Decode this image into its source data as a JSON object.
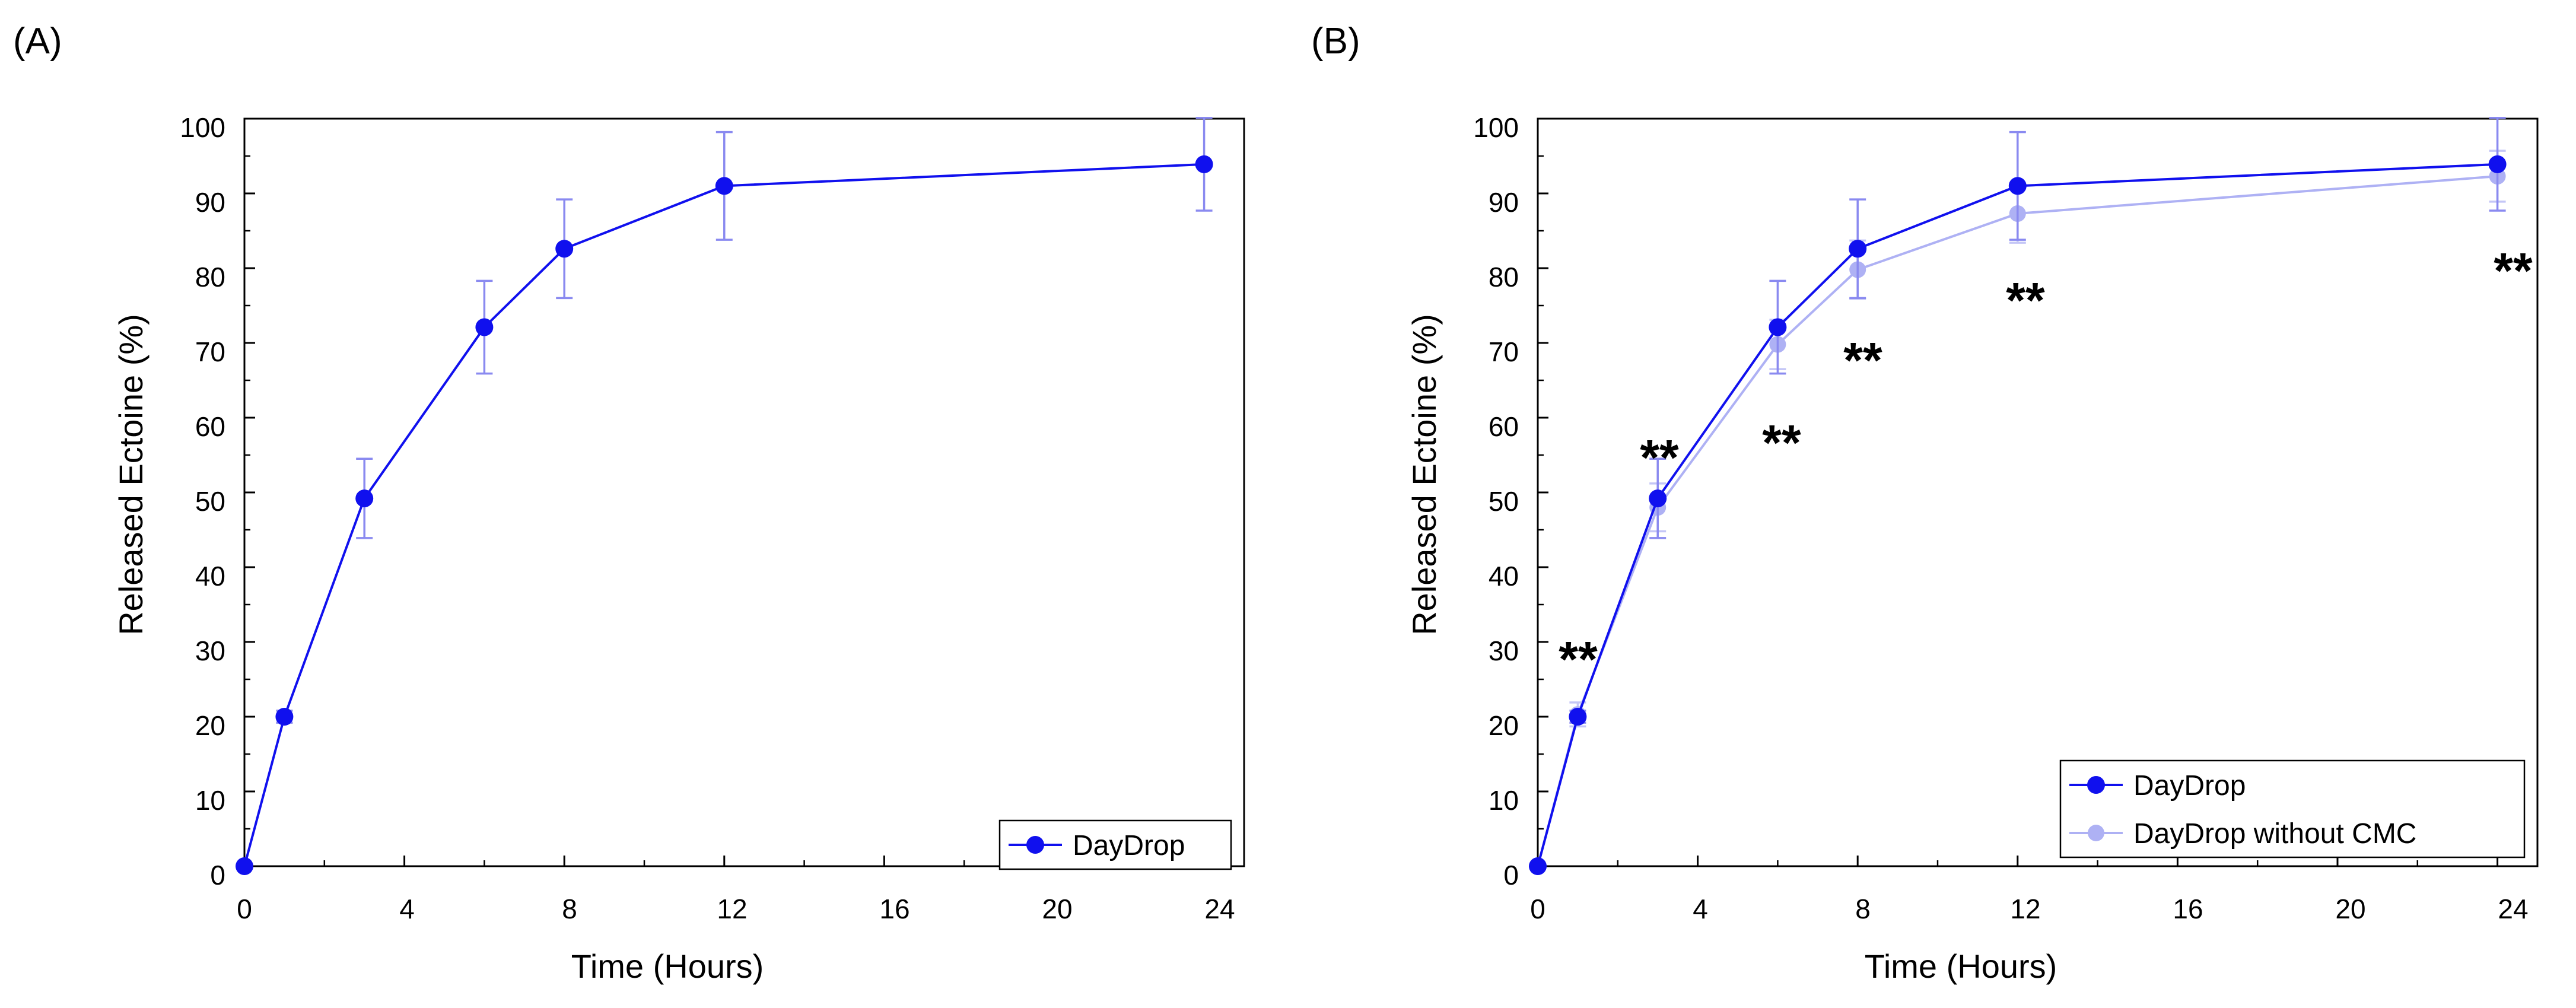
{
  "figure": {
    "panels": [
      {
        "label": "(A)",
        "legend": "bottom-right"
      },
      {
        "label": "(B)",
        "legend": "bottom-right"
      }
    ]
  },
  "chart_data": [
    {
      "type": "line",
      "title": "",
      "xlabel": "Time (Hours)",
      "ylabel": "Released Ectoine (%)",
      "xlim": [
        0,
        25
      ],
      "ylim": [
        0,
        100
      ],
      "xticks": [
        0,
        4,
        8,
        12,
        16,
        20,
        24
      ],
      "yticks": [
        0,
        10,
        20,
        30,
        40,
        50,
        60,
        70,
        80,
        90,
        100
      ],
      "grid": false,
      "series": [
        {
          "name": "DayDrop",
          "color": "#1010ee",
          "x": [
            0,
            1,
            3,
            6,
            8,
            12,
            24
          ],
          "y": [
            0,
            20,
            49.2,
            72.1,
            82.6,
            91,
            93.9
          ],
          "err": [
            0,
            0.8,
            5.3,
            6.2,
            6.6,
            7.2,
            6.2
          ]
        }
      ],
      "annotations": []
    },
    {
      "type": "line",
      "title": "",
      "xlabel": "Time (Hours)",
      "ylabel": "Released Ectoine (%)",
      "xlim": [
        0,
        25
      ],
      "ylim": [
        0,
        100
      ],
      "xticks": [
        0,
        4,
        8,
        12,
        16,
        20,
        24
      ],
      "yticks": [
        0,
        10,
        20,
        30,
        40,
        50,
        60,
        70,
        80,
        90,
        100
      ],
      "grid": false,
      "series": [
        {
          "name": "DayDrop",
          "color": "#1010ee",
          "x": [
            0,
            1,
            3,
            6,
            8,
            12,
            24
          ],
          "y": [
            0,
            20,
            49.2,
            72.1,
            82.6,
            91,
            93.9
          ],
          "err": [
            0,
            0.8,
            5.3,
            6.2,
            6.6,
            7.2,
            6.2
          ]
        },
        {
          "name": "DayDrop without CMC",
          "color": "#aeb1f4",
          "x": [
            0,
            1,
            3,
            6,
            8,
            12,
            24
          ],
          "y": [
            0,
            20.3,
            48,
            69.8,
            79.8,
            87.3,
            92.3
          ],
          "err": [
            0,
            1.6,
            3.2,
            3.3,
            3.9,
            3.9,
            3.4
          ]
        }
      ],
      "annotations": [
        {
          "text": "**",
          "x": 1,
          "y": 30
        },
        {
          "text": "**",
          "x": 3,
          "y": 57
        },
        {
          "text": "**",
          "x": 6,
          "y": 59
        },
        {
          "text": "**",
          "x": 8,
          "y": 70
        },
        {
          "text": "**",
          "x": 12,
          "y": 78
        },
        {
          "text": "**",
          "x": 24,
          "y": 82
        }
      ]
    }
  ]
}
